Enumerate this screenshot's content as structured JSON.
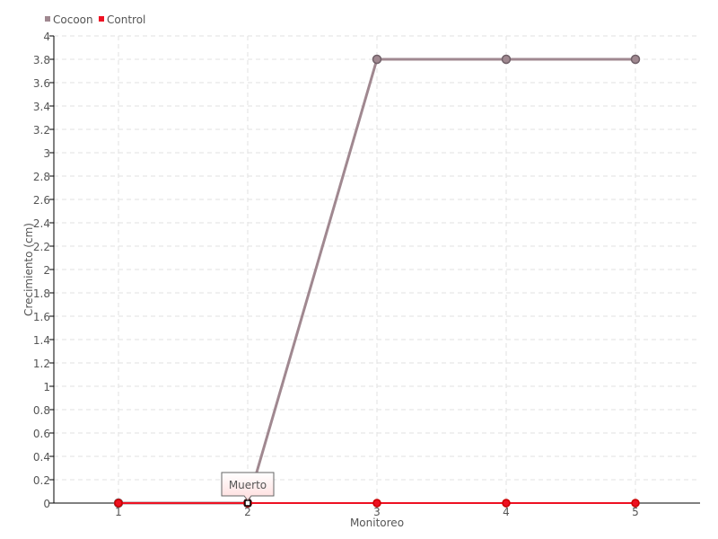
{
  "chart_data": {
    "type": "line",
    "title": "",
    "xlabel": "Monitoreo",
    "ylabel": "Crecimiento (cm)",
    "categories": [
      "1",
      "2",
      "3",
      "4",
      "5"
    ],
    "ylim": [
      0,
      4
    ],
    "yticks": [
      "0",
      "0.2",
      "0.4",
      "0.6",
      "0.8",
      "1",
      "1.2",
      "1.4",
      "1.6",
      "1.8",
      "2",
      "2.2",
      "2.4",
      "2.6",
      "2.8",
      "3",
      "3.2",
      "3.4",
      "3.6",
      "3.8",
      "4"
    ],
    "grid": true,
    "legend_position": "top-left",
    "series": [
      {
        "name": "Cocoon",
        "color": "#a08890",
        "values": [
          0,
          0,
          3.8,
          3.8,
          3.8
        ]
      },
      {
        "name": "Control",
        "color": "#ee1122",
        "values": [
          0,
          0,
          0,
          0,
          0
        ]
      }
    ],
    "tooltip": {
      "text": "Muerto",
      "category": "2"
    }
  }
}
